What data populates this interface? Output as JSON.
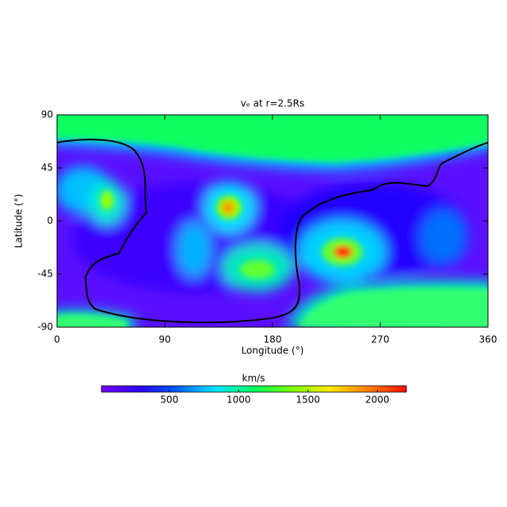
{
  "chart_data": {
    "type": "heatmap",
    "title": "vₑ at r=2.5Rs",
    "x_label": "Longitude (°)",
    "y_label": "Latitude (°)",
    "xlim": [
      0,
      360
    ],
    "xticks": [
      0,
      90,
      180,
      270,
      360
    ],
    "ylim": [
      -90,
      90
    ],
    "yticks": [
      -90,
      -45,
      0,
      45,
      90
    ],
    "colorbar_label": "km/s",
    "clim": [
      10,
      2210
    ],
    "cticks": [
      500,
      1000,
      1500,
      2000
    ],
    "colors": [
      "#7800ff",
      "#2a00ff",
      "#0060ff",
      "#00e8ff",
      "#00ff60",
      "#7cff00",
      "#ffe800",
      "#ff8000",
      "#ff1000"
    ]
  }
}
